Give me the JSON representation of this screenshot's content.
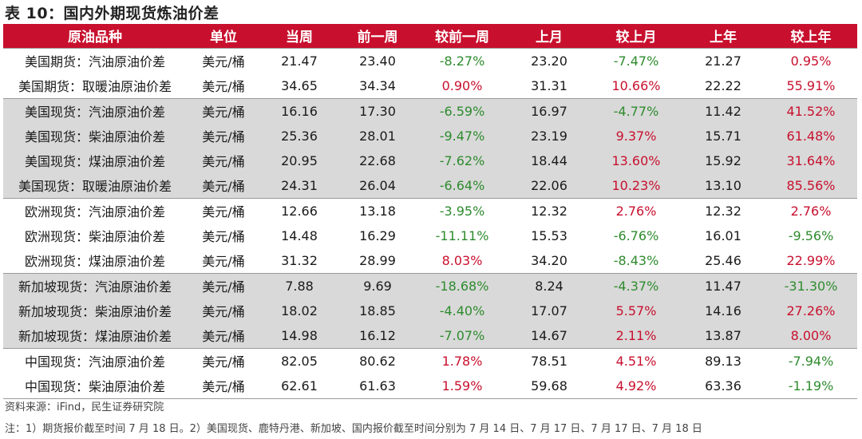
{
  "title": "表 10：国内外期现货炼油价差",
  "columns": [
    "原油品种",
    "单位",
    "当周",
    "前一周",
    "较前一周",
    "上月",
    "较上月",
    "上年",
    "较上年"
  ],
  "rows": [
    {
      "name": "美国期货：汽油原油价差",
      "unit": "美元/桶",
      "cur": "21.47",
      "prev_week": "23.40",
      "chg_week": "-8.27%",
      "last_month": "23.20",
      "chg_month": "-7.47%",
      "last_year": "21.27",
      "chg_year": "0.95%"
    },
    {
      "name": "美国期货：取暖油原油价差",
      "unit": "美元/桶",
      "cur": "34.65",
      "prev_week": "34.34",
      "chg_week": "0.90%",
      "last_month": "31.31",
      "chg_month": "10.66%",
      "last_year": "22.22",
      "chg_year": "55.91%"
    },
    {
      "name": "美国现货：汽油原油价差",
      "unit": "美元/桶",
      "cur": "16.16",
      "prev_week": "17.30",
      "chg_week": "-6.59%",
      "last_month": "16.97",
      "chg_month": "-4.77%",
      "last_year": "11.42",
      "chg_year": "41.52%"
    },
    {
      "name": "美国现货：柴油原油价差",
      "unit": "美元/桶",
      "cur": "25.36",
      "prev_week": "28.01",
      "chg_week": "-9.47%",
      "last_month": "23.19",
      "chg_month": "9.37%",
      "last_year": "15.71",
      "chg_year": "61.48%"
    },
    {
      "name": "美国现货：煤油原油价差",
      "unit": "美元/桶",
      "cur": "20.95",
      "prev_week": "22.68",
      "chg_week": "-7.62%",
      "last_month": "18.44",
      "chg_month": "13.60%",
      "last_year": "15.92",
      "chg_year": "31.64%"
    },
    {
      "name": "美国现货：取暖油原油价差",
      "unit": "美元/桶",
      "cur": "24.31",
      "prev_week": "26.04",
      "chg_week": "-6.64%",
      "last_month": "22.06",
      "chg_month": "10.23%",
      "last_year": "13.10",
      "chg_year": "85.56%"
    },
    {
      "name": "欧洲现货：汽油原油价差",
      "unit": "美元/桶",
      "cur": "12.66",
      "prev_week": "13.18",
      "chg_week": "-3.95%",
      "last_month": "12.32",
      "chg_month": "2.76%",
      "last_year": "12.32",
      "chg_year": "2.76%"
    },
    {
      "name": "欧洲现货：柴油原油价差",
      "unit": "美元/桶",
      "cur": "14.48",
      "prev_week": "16.29",
      "chg_week": "-11.11%",
      "last_month": "15.53",
      "chg_month": "-6.76%",
      "last_year": "16.01",
      "chg_year": "-9.56%"
    },
    {
      "name": "欧洲现货：煤油原油价差",
      "unit": "美元/桶",
      "cur": "31.32",
      "prev_week": "28.99",
      "chg_week": "8.03%",
      "last_month": "34.20",
      "chg_month": "-8.43%",
      "last_year": "25.46",
      "chg_year": "22.99%"
    },
    {
      "name": "新加坡现货：汽油原油价差",
      "unit": "美元/桶",
      "cur": "7.88",
      "prev_week": "9.69",
      "chg_week": "-18.68%",
      "last_month": "8.24",
      "chg_month": "-4.37%",
      "last_year": "11.47",
      "chg_year": "-31.30%"
    },
    {
      "name": "新加坡现货：柴油原油价差",
      "unit": "美元/桶",
      "cur": "18.02",
      "prev_week": "18.85",
      "chg_week": "-4.40%",
      "last_month": "17.07",
      "chg_month": "5.57%",
      "last_year": "14.16",
      "chg_year": "27.26%"
    },
    {
      "name": "新加坡现货：煤油原油价差",
      "unit": "美元/桶",
      "cur": "14.98",
      "prev_week": "16.12",
      "chg_week": "-7.07%",
      "last_month": "14.67",
      "chg_month": "2.11%",
      "last_year": "13.87",
      "chg_year": "8.00%"
    },
    {
      "name": "中国现货：汽油原油价差",
      "unit": "美元/桶",
      "cur": "82.05",
      "prev_week": "80.62",
      "chg_week": "1.78%",
      "last_month": "78.51",
      "chg_month": "4.51%",
      "last_year": "89.13",
      "chg_year": "-7.94%"
    },
    {
      "name": "中国现货：柴油原油价差",
      "unit": "美元/桶",
      "cur": "62.61",
      "prev_week": "61.63",
      "chg_week": "1.59%",
      "last_month": "59.68",
      "chg_month": "4.92%",
      "last_year": "63.36",
      "chg_year": "-1.19%"
    }
  ],
  "source": "资料来源：iFind，民生证券研究院",
  "note": "注：1）期货报价截至时间 7 月 18 日。2）美国现货、鹿特丹港、新加坡、国内报价截至时间分别为 7 月 14 日、7 月 17 日、7 月 17 日、7 月 18 日",
  "colors": {
    "header_bg": "#c8102e",
    "positive": "#c8102e",
    "negative": "#2e8b2e",
    "shade": "#d9d9d9"
  }
}
